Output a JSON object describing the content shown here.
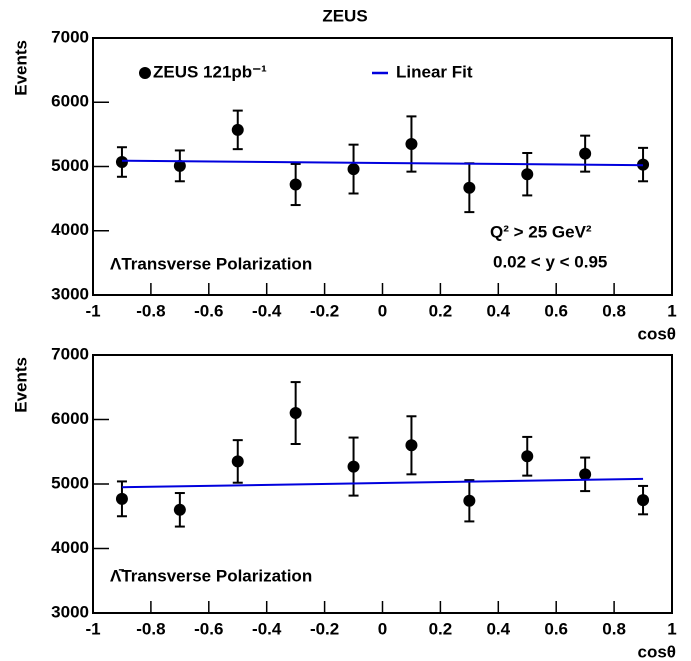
{
  "chart_data": [
    {
      "type": "scatter",
      "title": "ZEUS",
      "x_label": "cosθ",
      "y_label": "Events",
      "xlim": [
        -1,
        1
      ],
      "xticks": [
        -1,
        -0.8,
        -0.6,
        -0.4,
        -0.2,
        0,
        0.2,
        0.4,
        0.6,
        0.8,
        1
      ],
      "ylim": [
        3000,
        7000
      ],
      "yticks": [
        3000,
        4000,
        5000,
        6000,
        7000
      ],
      "annotations": [
        "Q² > 25 GeV²",
        "0.02 < y < 0.95",
        "ΛTransverse Polarization"
      ],
      "series": [
        {
          "name": "ZEUS 121pb⁻¹",
          "color": "#000000",
          "marker": "circle",
          "x": [
            -0.9,
            -0.7,
            -0.5,
            -0.3,
            -0.1,
            0.1,
            0.3,
            0.5,
            0.7,
            0.9
          ],
          "values": [
            5070,
            5010,
            5570,
            4720,
            4960,
            5350,
            4670,
            4880,
            5200,
            5030
          ],
          "errors": [
            230,
            240,
            300,
            320,
            380,
            430,
            380,
            330,
            280,
            260
          ]
        },
        {
          "name": "Linear Fit",
          "color": "#0000dd",
          "line": "solid",
          "x": [
            -0.9,
            0.9
          ],
          "values": [
            5090,
            5020
          ]
        }
      ]
    },
    {
      "type": "scatter",
      "x_label": "cosθ",
      "y_label": "Events",
      "xlim": [
        -1,
        1
      ],
      "xticks": [
        -1,
        -0.8,
        -0.6,
        -0.4,
        -0.2,
        0,
        0.2,
        0.4,
        0.6,
        0.8,
        1
      ],
      "ylim": [
        3000,
        7000
      ],
      "yticks": [
        3000,
        4000,
        5000,
        6000,
        7000
      ],
      "annotations": [
        "Λ̄Transverse Polarization"
      ],
      "series": [
        {
          "color": "#000000",
          "marker": "circle",
          "x": [
            -0.9,
            -0.7,
            -0.5,
            -0.3,
            -0.1,
            0.1,
            0.3,
            0.5,
            0.7,
            0.9
          ],
          "values": [
            4770,
            4600,
            5350,
            6100,
            5270,
            5600,
            4740,
            5430,
            5150,
            4750
          ],
          "errors": [
            270,
            260,
            330,
            480,
            450,
            450,
            320,
            300,
            260,
            220
          ]
        },
        {
          "color": "#0000dd",
          "line": "solid",
          "x": [
            -0.9,
            0.9
          ],
          "values": [
            4950,
            5080
          ]
        }
      ]
    }
  ]
}
